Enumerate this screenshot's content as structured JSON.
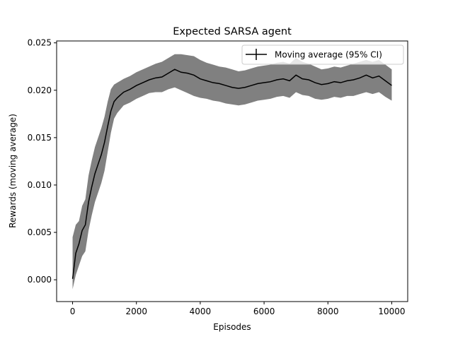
{
  "chart_data": {
    "type": "line",
    "title": "Expected SARSA agent",
    "xlabel": "Episodes",
    "ylabel": "Rewards (moving average)",
    "xlim": [
      -500,
      10500
    ],
    "ylim": [
      -0.0023,
      0.0252
    ],
    "xticks": [
      0,
      2000,
      4000,
      6000,
      8000,
      10000
    ],
    "xtick_labels": [
      "0",
      "2000",
      "4000",
      "6000",
      "8000",
      "10000"
    ],
    "yticks": [
      0.0,
      0.005,
      0.01,
      0.015,
      0.02,
      0.025
    ],
    "ytick_labels": [
      "0.000",
      "0.005",
      "0.010",
      "0.015",
      "0.020",
      "0.025"
    ],
    "grid": false,
    "legend": {
      "placement": "top-right",
      "entries": [
        "Moving average (95% CI)"
      ]
    },
    "colors": {
      "line": "#000000",
      "ci_band": "#808080"
    },
    "series": [
      {
        "name": "Moving average (95% CI)",
        "x": [
          0,
          100,
          200,
          300,
          400,
          500,
          600,
          700,
          800,
          900,
          1000,
          1100,
          1200,
          1300,
          1400,
          1500,
          1600,
          1800,
          2000,
          2200,
          2400,
          2600,
          2800,
          3000,
          3200,
          3400,
          3600,
          3800,
          4000,
          4200,
          4400,
          4600,
          4800,
          5000,
          5200,
          5400,
          5600,
          5800,
          6000,
          6200,
          6400,
          6600,
          6800,
          7000,
          7200,
          7400,
          7600,
          7800,
          8000,
          8200,
          8400,
          8600,
          8800,
          9000,
          9200,
          9400,
          9600,
          9800,
          10000
        ],
        "y": [
          0.0001,
          0.0028,
          0.0038,
          0.0052,
          0.0058,
          0.0082,
          0.0098,
          0.0112,
          0.0122,
          0.0132,
          0.0145,
          0.0162,
          0.0178,
          0.0188,
          0.0192,
          0.0195,
          0.0198,
          0.0201,
          0.0205,
          0.0208,
          0.0211,
          0.0213,
          0.0214,
          0.0218,
          0.0222,
          0.0219,
          0.0218,
          0.0216,
          0.0212,
          0.021,
          0.0208,
          0.0207,
          0.0205,
          0.0203,
          0.0202,
          0.0203,
          0.0205,
          0.0207,
          0.0208,
          0.0209,
          0.0211,
          0.0212,
          0.021,
          0.0216,
          0.0212,
          0.0211,
          0.0208,
          0.0206,
          0.0207,
          0.0209,
          0.0208,
          0.021,
          0.0211,
          0.0213,
          0.0216,
          0.0213,
          0.0215,
          0.021,
          0.0205
        ],
        "ci_lower": [
          -0.001,
          0.0005,
          0.0015,
          0.0025,
          0.003,
          0.0052,
          0.0068,
          0.0082,
          0.0092,
          0.0102,
          0.0115,
          0.0135,
          0.0155,
          0.017,
          0.0176,
          0.018,
          0.0184,
          0.0187,
          0.0191,
          0.0194,
          0.0197,
          0.0198,
          0.0198,
          0.0201,
          0.0203,
          0.02,
          0.0197,
          0.0194,
          0.0192,
          0.0191,
          0.0189,
          0.0188,
          0.0186,
          0.0185,
          0.0184,
          0.0185,
          0.0187,
          0.0189,
          0.019,
          0.0191,
          0.0193,
          0.0194,
          0.0192,
          0.0198,
          0.0195,
          0.0194,
          0.0191,
          0.019,
          0.0191,
          0.0193,
          0.0192,
          0.0194,
          0.0194,
          0.0196,
          0.0198,
          0.0196,
          0.0198,
          0.0193,
          0.0189
        ],
        "ci_upper": [
          0.0045,
          0.0058,
          0.0062,
          0.0078,
          0.0085,
          0.011,
          0.0126,
          0.014,
          0.015,
          0.016,
          0.0172,
          0.0188,
          0.0201,
          0.0206,
          0.0208,
          0.021,
          0.0212,
          0.0215,
          0.0219,
          0.0222,
          0.0225,
          0.0228,
          0.023,
          0.0234,
          0.0238,
          0.0238,
          0.0237,
          0.0236,
          0.0232,
          0.0229,
          0.0227,
          0.0225,
          0.0224,
          0.0222,
          0.022,
          0.0221,
          0.0223,
          0.0225,
          0.0226,
          0.0227,
          0.0229,
          0.023,
          0.0228,
          0.0234,
          0.023,
          0.0228,
          0.0225,
          0.0222,
          0.0223,
          0.0225,
          0.0224,
          0.0226,
          0.0228,
          0.023,
          0.0232,
          0.023,
          0.0232,
          0.0227,
          0.0222
        ]
      }
    ]
  }
}
